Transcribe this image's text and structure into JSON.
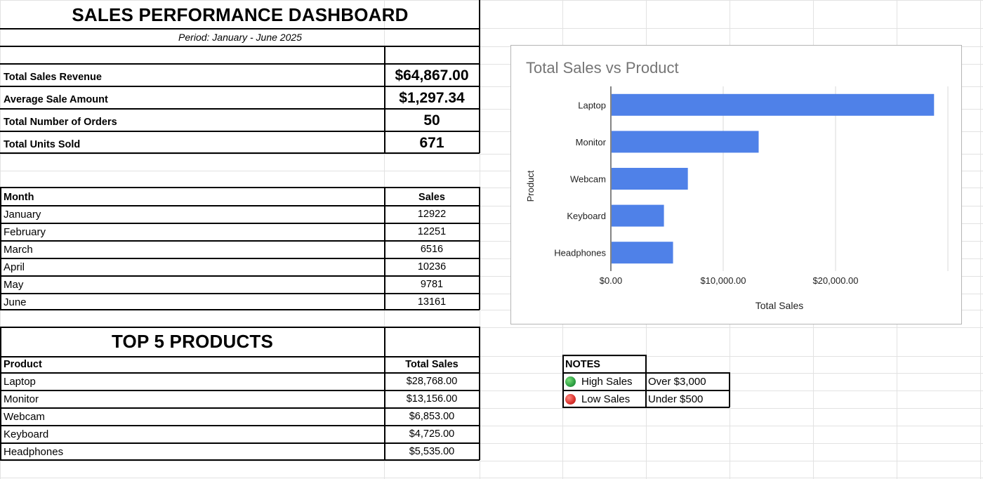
{
  "dashboard": {
    "title": "SALES PERFORMANCE DASHBOARD",
    "period": "Period: January - June 2025"
  },
  "kpis": [
    {
      "label": "Total Sales Revenue",
      "value": "$64,867.00"
    },
    {
      "label": "Average Sale Amount",
      "value": "$1,297.34"
    },
    {
      "label": "Total Number of Orders",
      "value": "50"
    },
    {
      "label": "Total Units Sold",
      "value": "671"
    }
  ],
  "monthly": {
    "header_month": "Month",
    "header_sales": "Sales",
    "rows": [
      {
        "month": "January",
        "sales": "12922"
      },
      {
        "month": "February",
        "sales": "12251"
      },
      {
        "month": "March",
        "sales": "6516"
      },
      {
        "month": "April",
        "sales": "10236"
      },
      {
        "month": "May",
        "sales": "9781"
      },
      {
        "month": "June",
        "sales": "13161"
      }
    ]
  },
  "top_products": {
    "title": "TOP 5 PRODUCTS",
    "header_product": "Product",
    "header_total": "Total Sales",
    "rows": [
      {
        "product": "Laptop",
        "total": "$28,768.00"
      },
      {
        "product": "Monitor",
        "total": "$13,156.00"
      },
      {
        "product": "Webcam",
        "total": "$6,853.00"
      },
      {
        "product": "Keyboard",
        "total": "$4,725.00"
      },
      {
        "product": "Headphones",
        "total": "$5,535.00"
      }
    ]
  },
  "notes": {
    "title": "NOTES",
    "items": [
      {
        "label": "High Sales",
        "desc": "Over $3,000",
        "color": "#2ea043"
      },
      {
        "label": "Low Sales",
        "desc": "Under $500",
        "color": "#d9302c"
      }
    ]
  },
  "chart_data": {
    "type": "bar",
    "orientation": "horizontal",
    "title": "Total Sales vs Product",
    "xlabel": "Total Sales",
    "ylabel": "Product",
    "categories": [
      "Laptop",
      "Monitor",
      "Webcam",
      "Keyboard",
      "Headphones"
    ],
    "values": [
      28768,
      13156,
      6853,
      4725,
      5535
    ],
    "xlim": [
      0,
      30000
    ],
    "xticks": [
      0,
      10000,
      20000
    ],
    "xtick_labels": [
      "$0.00",
      "$10,000.00",
      "$20,000.00"
    ],
    "bar_color": "#4f81e8",
    "grid": true
  }
}
